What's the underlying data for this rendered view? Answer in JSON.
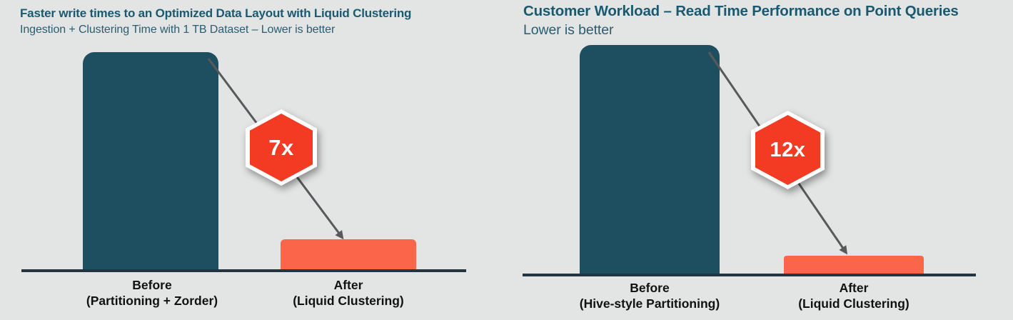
{
  "page": {
    "background": "#e3e4e4"
  },
  "chart_data": [
    {
      "type": "bar",
      "title": "Faster write times to an Optimized Data Layout with Liquid Clustering",
      "subtitle": "Ingestion + Clustering Time with 1 TB Dataset – Lower is better",
      "categories": [
        "Before (Partitioning + Zorder)",
        "After (Liquid Clustering)"
      ],
      "category_lines": [
        [
          "Before",
          "(Partitioning + Zorder)"
        ],
        [
          "After",
          "(Liquid Clustering)"
        ]
      ],
      "values": [
        7,
        1
      ],
      "ylim": [
        0,
        7
      ],
      "grid": false,
      "legend": "none",
      "badge": "7x",
      "bar_colors": [
        "#1d4f60",
        "#fb6549"
      ],
      "annotation": "arrow from top of Before bar down to After bar through 7x hexagon badge"
    },
    {
      "type": "bar",
      "title": "Customer Workload –  Read Time Performance on Point Queries",
      "subtitle": "Lower is better",
      "categories": [
        "Before (Hive-style Partitioning)",
        "After (Liquid Clustering)"
      ],
      "category_lines": [
        [
          "Before",
          "(Hive-style Partitioning)"
        ],
        [
          "After",
          "(Liquid Clustering)"
        ]
      ],
      "values": [
        12,
        1
      ],
      "ylim": [
        0,
        12
      ],
      "grid": false,
      "legend": "none",
      "badge": "12x",
      "bar_colors": [
        "#1d4f60",
        "#fb6549"
      ],
      "annotation": "arrow from top of Before bar down to After bar through 12x hexagon badge"
    }
  ],
  "colors": {
    "background": "#e3e4e4",
    "title_teal": "#1a5a70",
    "bar_teal": "#1d4f60",
    "bar_orange": "#fb6549",
    "badge_red": "#f23b22",
    "badge_border": "#ffffff",
    "arrow_gray": "#59595b",
    "axis_dark": "#223540",
    "label_black": "#111111"
  }
}
